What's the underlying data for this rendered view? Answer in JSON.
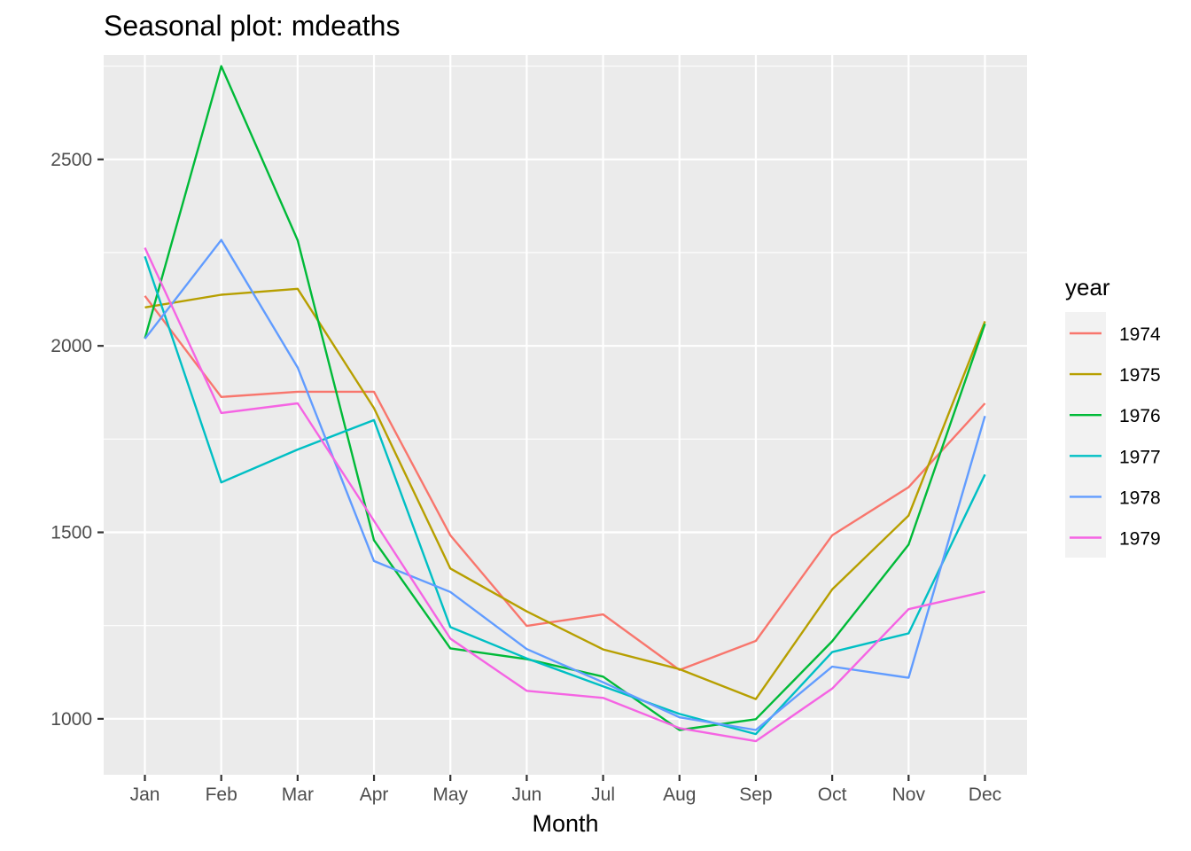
{
  "chart_data": {
    "type": "line",
    "title": "Seasonal plot: mdeaths",
    "xlabel": "Month",
    "ylabel": "",
    "categories": [
      "Jan",
      "Feb",
      "Mar",
      "Apr",
      "May",
      "Jun",
      "Jul",
      "Aug",
      "Sep",
      "Oct",
      "Nov",
      "Dec"
    ],
    "ylim": [
      850,
      2780
    ],
    "yticks": [
      1000,
      1500,
      2000,
      2500
    ],
    "grid": true,
    "legend": {
      "title": "year",
      "position": "right"
    },
    "series": [
      {
        "name": "1974",
        "color": "#F8766D",
        "values": [
          2134,
          1863,
          1877,
          1877,
          1492,
          1249,
          1280,
          1131,
          1209,
          1492,
          1621,
          1846
        ]
      },
      {
        "name": "1975",
        "color": "#B79F00",
        "values": [
          2103,
          2137,
          2153,
          1833,
          1403,
          1288,
          1186,
          1133,
          1053,
          1347,
          1545,
          2066
        ]
      },
      {
        "name": "1976",
        "color": "#00BA38",
        "values": [
          2020,
          2750,
          2283,
          1479,
          1189,
          1160,
          1113,
          970,
          999,
          1208,
          1467,
          2059
        ]
      },
      {
        "name": "1977",
        "color": "#00BFC4",
        "values": [
          2240,
          1634,
          1722,
          1801,
          1246,
          1162,
          1087,
          1013,
          959,
          1179,
          1229,
          1655
        ]
      },
      {
        "name": "1978",
        "color": "#619CFF",
        "values": [
          2019,
          2284,
          1942,
          1423,
          1340,
          1187,
          1098,
          1004,
          970,
          1140,
          1110,
          1812
        ]
      },
      {
        "name": "1979",
        "color": "#F564E3",
        "values": [
          2263,
          1820,
          1846,
          1531,
          1215,
          1075,
          1056,
          975,
          940,
          1081,
          1294,
          1341
        ]
      }
    ]
  }
}
